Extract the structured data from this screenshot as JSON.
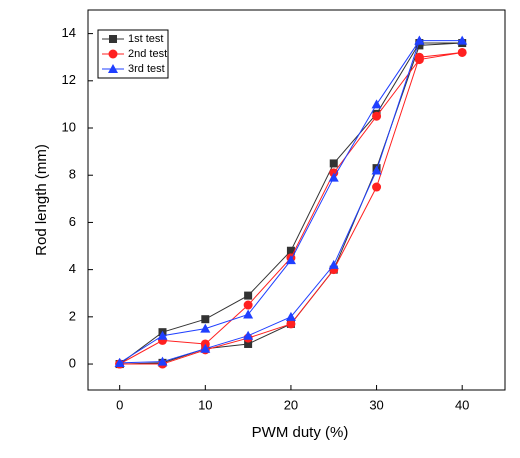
{
  "chart_data": {
    "type": "line",
    "x_label": "PWM duty (%)",
    "y_label": "Rod length (mm)",
    "x": [
      0,
      5,
      10,
      15,
      20,
      25,
      30,
      35,
      40,
      35,
      30,
      25,
      20,
      15,
      10,
      5,
      0
    ],
    "series": [
      {
        "name": "1st test",
        "color": "#333333",
        "marker": "square",
        "values": [
          0,
          0.05,
          0.65,
          0.85,
          1.7,
          4.0,
          8.3,
          13.5,
          13.6,
          13.6,
          10.6,
          8.5,
          4.8,
          2.9,
          1.9,
          1.35,
          0
        ]
      },
      {
        "name": "2nd test",
        "color": "#ff2020",
        "marker": "circle",
        "values": [
          0,
          0,
          0.6,
          1.1,
          1.7,
          4.0,
          7.5,
          13.0,
          13.2,
          12.9,
          10.5,
          8.1,
          4.5,
          2.5,
          0.85,
          1.0,
          0
        ]
      },
      {
        "name": "3rd test",
        "color": "#1f3fff",
        "marker": "triangle",
        "values": [
          0.05,
          0.1,
          0.65,
          1.2,
          2.0,
          4.2,
          8.2,
          13.7,
          13.7,
          13.7,
          11.0,
          7.9,
          4.4,
          2.1,
          1.5,
          1.2,
          0.05
        ]
      }
    ],
    "xlim": [
      -3.7,
      45
    ],
    "xticks": [
      0,
      10,
      20,
      30,
      40
    ],
    "ylim": [
      -1.1,
      15
    ],
    "yticks": [
      0,
      2,
      4,
      6,
      8,
      10,
      12,
      14
    ],
    "legend": "top-left"
  }
}
